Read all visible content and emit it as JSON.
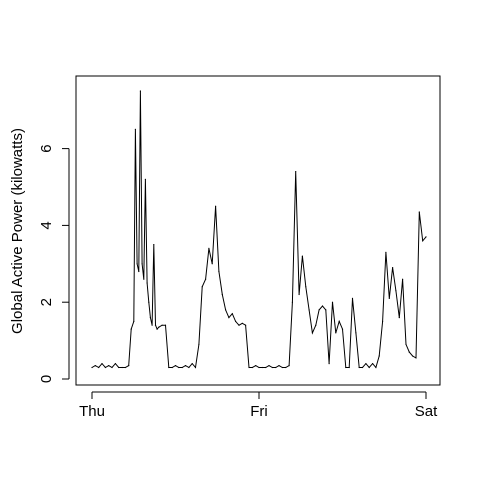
{
  "chart_data": {
    "type": "line",
    "title": "",
    "xlabel": "",
    "ylabel": "Global Active Power (kilowatts)",
    "x_ticks": [
      "Thu",
      "Fri",
      "Sat"
    ],
    "x_tick_days": [
      0,
      1,
      2
    ],
    "y_ticks": [
      0,
      2,
      4,
      6
    ],
    "xlim": [
      0,
      2
    ],
    "ylim": [
      0,
      7.5
    ],
    "grid": false,
    "legend": "none",
    "series": [
      {
        "x": [
          0.0,
          0.02,
          0.04,
          0.06,
          0.08,
          0.1,
          0.12,
          0.14,
          0.16,
          0.18,
          0.2,
          0.22,
          0.235,
          0.25,
          0.26,
          0.27,
          0.28,
          0.29,
          0.3,
          0.31,
          0.32,
          0.33,
          0.34,
          0.35,
          0.36,
          0.37,
          0.38,
          0.39,
          0.4,
          0.42,
          0.44,
          0.46,
          0.48,
          0.5,
          0.52,
          0.54,
          0.56,
          0.58,
          0.6,
          0.62,
          0.64,
          0.66,
          0.68,
          0.7,
          0.72,
          0.74,
          0.76,
          0.78,
          0.8,
          0.82,
          0.84,
          0.86,
          0.88,
          0.9,
          0.92,
          0.94,
          0.96,
          0.98,
          1.0,
          1.02,
          1.04,
          1.06,
          1.08,
          1.1,
          1.12,
          1.14,
          1.16,
          1.18,
          1.2,
          1.22,
          1.24,
          1.26,
          1.28,
          1.3,
          1.32,
          1.34,
          1.36,
          1.38,
          1.4,
          1.42,
          1.44,
          1.46,
          1.48,
          1.5,
          1.52,
          1.54,
          1.56,
          1.58,
          1.6,
          1.62,
          1.64,
          1.66,
          1.68,
          1.7,
          1.72,
          1.74,
          1.76,
          1.78,
          1.8,
          1.82,
          1.84,
          1.86,
          1.88,
          1.9,
          1.92,
          1.94,
          1.96,
          1.98,
          2.0
        ],
        "y": [
          0.3,
          0.35,
          0.3,
          0.4,
          0.3,
          0.35,
          0.3,
          0.4,
          0.3,
          0.3,
          0.3,
          0.35,
          1.3,
          1.5,
          6.5,
          3.0,
          2.8,
          7.5,
          3.0,
          2.6,
          5.2,
          2.5,
          2.0,
          1.6,
          1.4,
          3.5,
          1.4,
          1.3,
          1.35,
          1.4,
          1.4,
          0.3,
          0.3,
          0.35,
          0.3,
          0.3,
          0.35,
          0.3,
          0.4,
          0.3,
          0.9,
          2.4,
          2.6,
          3.4,
          3.0,
          4.5,
          2.8,
          2.2,
          1.8,
          1.6,
          1.7,
          1.5,
          1.4,
          1.45,
          1.4,
          0.3,
          0.3,
          0.35,
          0.3,
          0.3,
          0.3,
          0.35,
          0.3,
          0.3,
          0.35,
          0.3,
          0.3,
          0.35,
          2.0,
          5.4,
          2.2,
          3.2,
          2.4,
          1.8,
          1.2,
          1.4,
          1.8,
          1.9,
          1.8,
          0.4,
          2.0,
          1.2,
          1.5,
          1.3,
          0.3,
          0.3,
          2.1,
          1.2,
          0.3,
          0.3,
          0.4,
          0.3,
          0.4,
          0.3,
          0.6,
          1.5,
          3.3,
          2.1,
          2.9,
          2.3,
          1.6,
          2.6,
          0.9,
          0.7,
          0.6,
          0.55,
          4.35,
          3.6,
          3.7
        ]
      }
    ]
  }
}
